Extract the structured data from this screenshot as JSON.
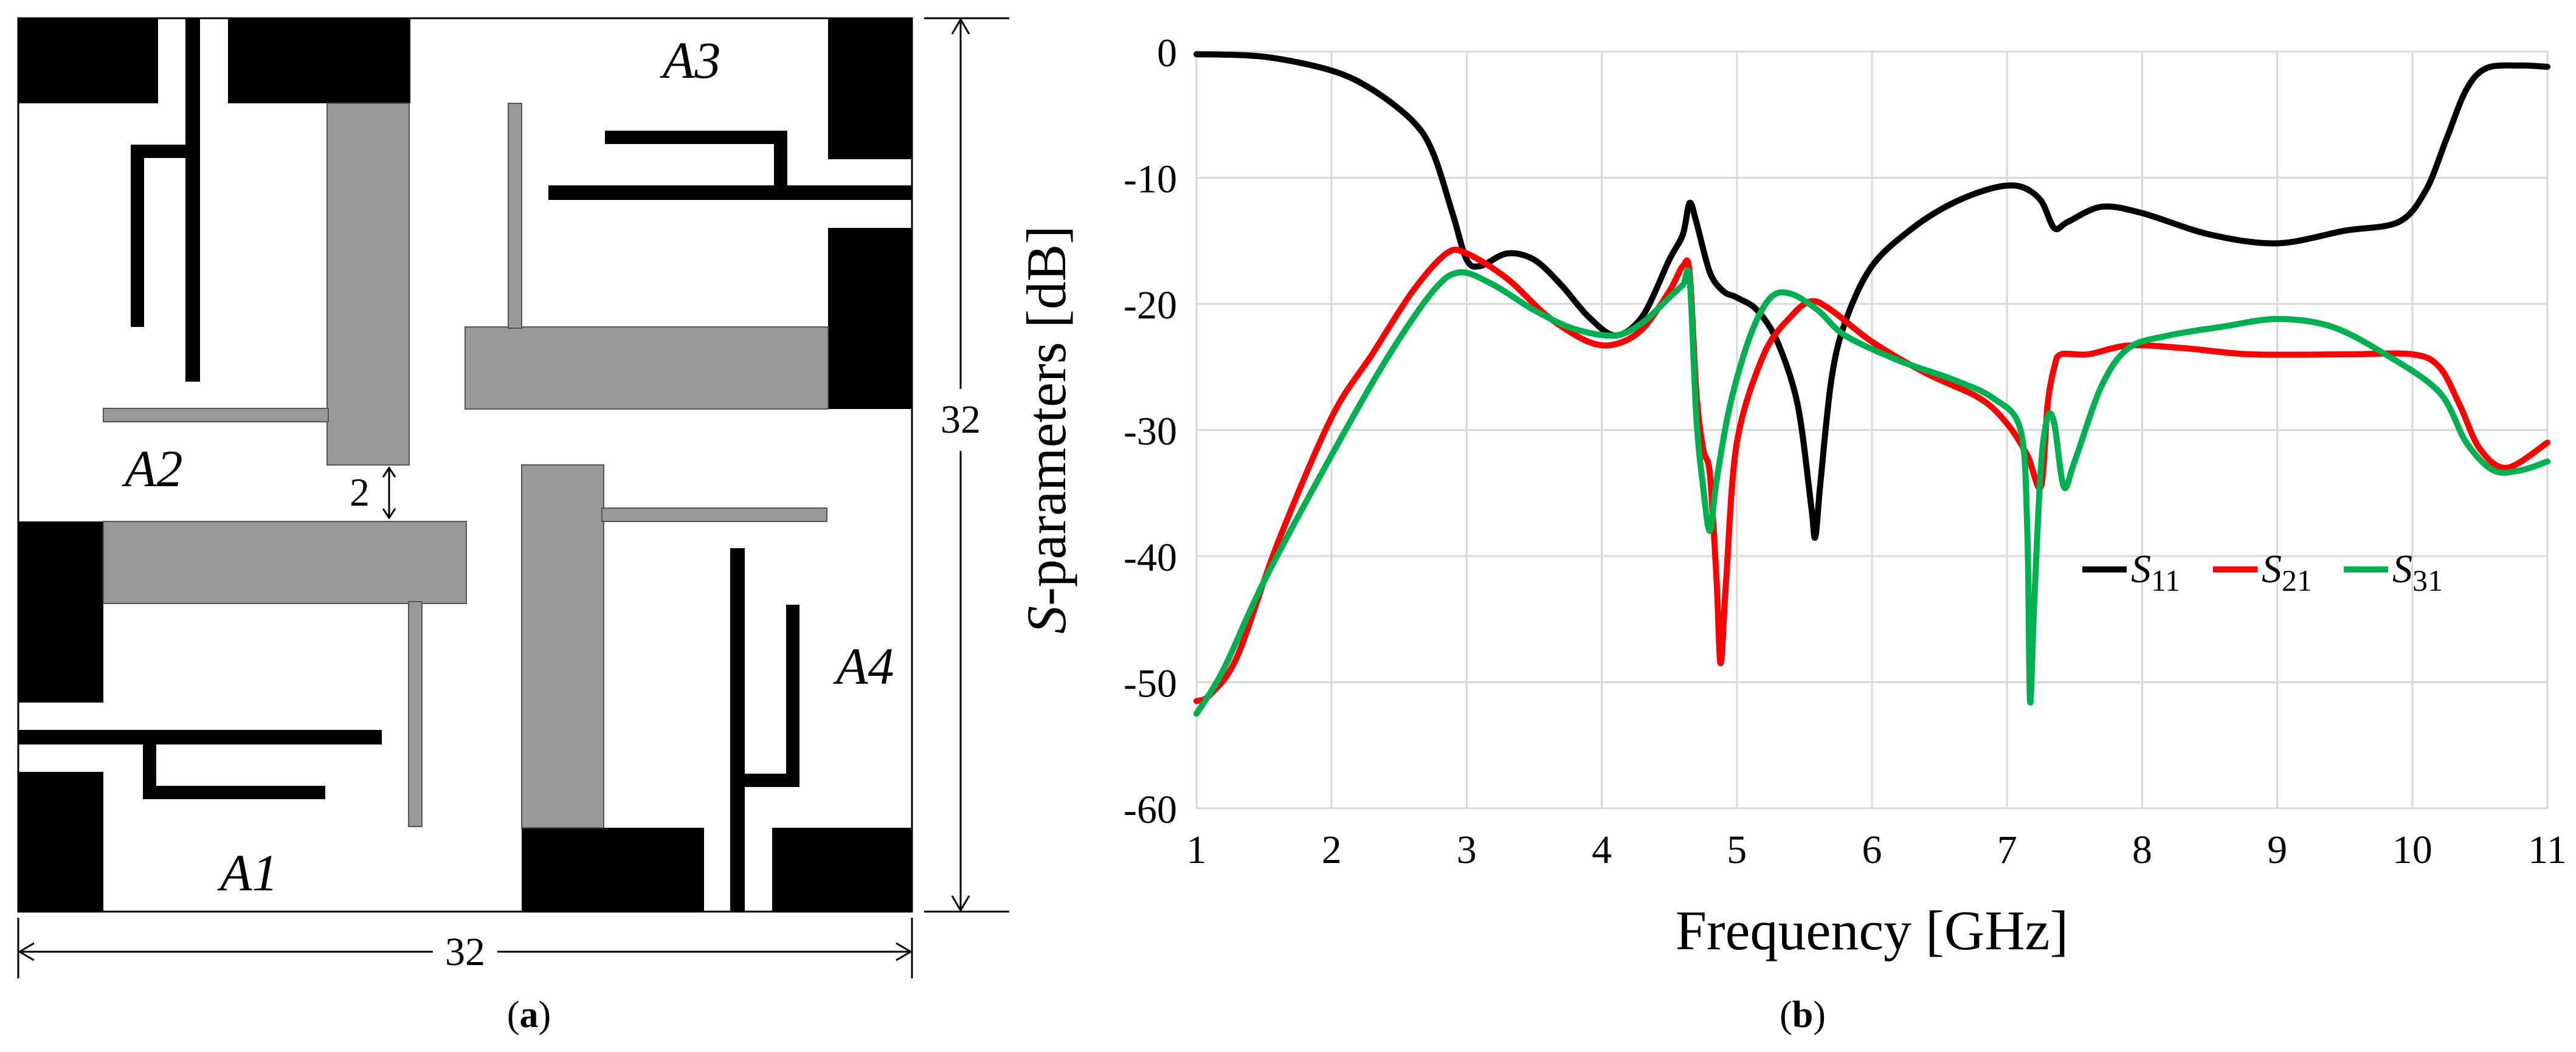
{
  "panel_a": {
    "caption_open": "(",
    "caption_letter": "a",
    "caption_close": ")",
    "labels": {
      "a1": "A1",
      "a2": "A2",
      "a3": "A3",
      "a4": "A4"
    },
    "dimension_width": "32",
    "dimension_height": "32",
    "gap_label": "2",
    "colors": {
      "black_patch": "#000000",
      "gray_patch": "#999999"
    }
  },
  "panel_b": {
    "caption_open": "(",
    "caption_letter": "b",
    "caption_close": ")"
  },
  "chart_data": {
    "type": "line",
    "title": "",
    "xlabel": "Frequency [GHz]",
    "ylabel_prefix": "S",
    "ylabel_rest": "-parameters [dB]",
    "xlim": [
      1,
      11
    ],
    "ylim": [
      -60,
      0
    ],
    "x_ticks": [
      "1",
      "2",
      "3",
      "4",
      "5",
      "6",
      "7",
      "8",
      "9",
      "10",
      "11"
    ],
    "y_ticks": [
      "0",
      "-10",
      "-20",
      "-30",
      "-40",
      "-50",
      "-60"
    ],
    "grid": true,
    "legend_position": "center-right",
    "series": [
      {
        "name": "S11",
        "name_main": "S",
        "name_sub": "11",
        "color": "#000000",
        "points": [
          [
            1.0,
            -0.2
          ],
          [
            1.5,
            -0.4
          ],
          [
            2.0,
            -1.5
          ],
          [
            2.3,
            -3.0
          ],
          [
            2.6,
            -5.5
          ],
          [
            2.75,
            -8.0
          ],
          [
            2.9,
            -13.0
          ],
          [
            3.0,
            -16.5
          ],
          [
            3.1,
            -17.0
          ],
          [
            3.3,
            -16.0
          ],
          [
            3.5,
            -16.5
          ],
          [
            3.7,
            -18.5
          ],
          [
            3.9,
            -21.0
          ],
          [
            4.1,
            -22.5
          ],
          [
            4.3,
            -21.0
          ],
          [
            4.5,
            -16.5
          ],
          [
            4.6,
            -14.5
          ],
          [
            4.65,
            -12.0
          ],
          [
            4.7,
            -13.5
          ],
          [
            4.8,
            -17.5
          ],
          [
            4.9,
            -19.0
          ],
          [
            5.0,
            -19.5
          ],
          [
            5.15,
            -20.5
          ],
          [
            5.3,
            -23.0
          ],
          [
            5.45,
            -28.0
          ],
          [
            5.55,
            -36.0
          ],
          [
            5.58,
            -38.5
          ],
          [
            5.62,
            -34.0
          ],
          [
            5.7,
            -26.0
          ],
          [
            5.8,
            -21.5
          ],
          [
            6.0,
            -17.0
          ],
          [
            6.3,
            -14.0
          ],
          [
            6.6,
            -12.0
          ],
          [
            6.9,
            -10.8
          ],
          [
            7.1,
            -10.7
          ],
          [
            7.25,
            -11.8
          ],
          [
            7.35,
            -14.0
          ],
          [
            7.45,
            -13.5
          ],
          [
            7.7,
            -12.3
          ],
          [
            8.0,
            -12.8
          ],
          [
            8.5,
            -14.5
          ],
          [
            9.0,
            -15.2
          ],
          [
            9.5,
            -14.2
          ],
          [
            9.9,
            -13.5
          ],
          [
            10.1,
            -11.0
          ],
          [
            10.25,
            -7.0
          ],
          [
            10.4,
            -3.0
          ],
          [
            10.55,
            -1.3
          ],
          [
            10.8,
            -1.1
          ],
          [
            11.0,
            -1.2
          ]
        ]
      },
      {
        "name": "S21",
        "name_main": "S",
        "name_sub": "21",
        "color": "#ff0000",
        "points": [
          [
            1.0,
            -51.5
          ],
          [
            1.1,
            -51.0
          ],
          [
            1.3,
            -48.0
          ],
          [
            1.6,
            -39.0
          ],
          [
            2.0,
            -29.0
          ],
          [
            2.3,
            -24.0
          ],
          [
            2.6,
            -19.0
          ],
          [
            2.85,
            -16.0
          ],
          [
            3.0,
            -16.0
          ],
          [
            3.3,
            -18.0
          ],
          [
            3.6,
            -21.0
          ],
          [
            3.9,
            -23.0
          ],
          [
            4.1,
            -23.2
          ],
          [
            4.3,
            -22.0
          ],
          [
            4.5,
            -19.0
          ],
          [
            4.6,
            -17.0
          ],
          [
            4.65,
            -17.5
          ],
          [
            4.7,
            -27.0
          ],
          [
            4.75,
            -31.5
          ],
          [
            4.8,
            -33.5
          ],
          [
            4.85,
            -42.0
          ],
          [
            4.88,
            -48.5
          ],
          [
            4.92,
            -42.0
          ],
          [
            5.0,
            -31.0
          ],
          [
            5.2,
            -24.0
          ],
          [
            5.4,
            -21.0
          ],
          [
            5.55,
            -19.8
          ],
          [
            5.7,
            -20.5
          ],
          [
            6.0,
            -23.0
          ],
          [
            6.4,
            -25.5
          ],
          [
            6.8,
            -27.5
          ],
          [
            7.0,
            -29.5
          ],
          [
            7.15,
            -32.0
          ],
          [
            7.25,
            -34.5
          ],
          [
            7.3,
            -28.0
          ],
          [
            7.35,
            -25.0
          ],
          [
            7.4,
            -24.0
          ],
          [
            7.6,
            -24.0
          ],
          [
            7.9,
            -23.3
          ],
          [
            8.3,
            -23.5
          ],
          [
            8.8,
            -24.0
          ],
          [
            9.5,
            -24.0
          ],
          [
            10.0,
            -24.0
          ],
          [
            10.2,
            -25.0
          ],
          [
            10.35,
            -28.0
          ],
          [
            10.5,
            -31.5
          ],
          [
            10.7,
            -33.0
          ],
          [
            11.0,
            -31.0
          ]
        ]
      },
      {
        "name": "S31",
        "name_main": "S",
        "name_sub": "31",
        "color": "#00b050",
        "points": [
          [
            1.0,
            -52.5
          ],
          [
            1.2,
            -49.0
          ],
          [
            1.5,
            -42.0
          ],
          [
            2.0,
            -32.0
          ],
          [
            2.4,
            -24.5
          ],
          [
            2.75,
            -19.0
          ],
          [
            2.95,
            -17.5
          ],
          [
            3.2,
            -18.5
          ],
          [
            3.5,
            -20.5
          ],
          [
            3.8,
            -22.0
          ],
          [
            4.1,
            -22.5
          ],
          [
            4.3,
            -21.5
          ],
          [
            4.5,
            -19.5
          ],
          [
            4.6,
            -18.5
          ],
          [
            4.65,
            -18.0
          ],
          [
            4.7,
            -29.0
          ],
          [
            4.75,
            -34.5
          ],
          [
            4.8,
            -38.0
          ],
          [
            4.85,
            -34.0
          ],
          [
            4.95,
            -28.0
          ],
          [
            5.1,
            -22.5
          ],
          [
            5.25,
            -19.5
          ],
          [
            5.4,
            -19.2
          ],
          [
            5.6,
            -20.5
          ],
          [
            5.8,
            -22.5
          ],
          [
            6.2,
            -24.5
          ],
          [
            6.6,
            -26.0
          ],
          [
            6.9,
            -27.5
          ],
          [
            7.1,
            -30.0
          ],
          [
            7.15,
            -38.0
          ],
          [
            7.17,
            -51.5
          ],
          [
            7.2,
            -44.0
          ],
          [
            7.25,
            -33.0
          ],
          [
            7.3,
            -29.0
          ],
          [
            7.35,
            -29.5
          ],
          [
            7.42,
            -34.5
          ],
          [
            7.5,
            -32.5
          ],
          [
            7.7,
            -26.5
          ],
          [
            7.9,
            -23.5
          ],
          [
            8.2,
            -22.5
          ],
          [
            8.6,
            -21.8
          ],
          [
            9.0,
            -21.2
          ],
          [
            9.4,
            -21.8
          ],
          [
            9.8,
            -24.0
          ],
          [
            10.2,
            -27.0
          ],
          [
            10.4,
            -31.0
          ],
          [
            10.6,
            -33.2
          ],
          [
            10.8,
            -33.2
          ],
          [
            11.0,
            -32.5
          ]
        ]
      }
    ]
  }
}
